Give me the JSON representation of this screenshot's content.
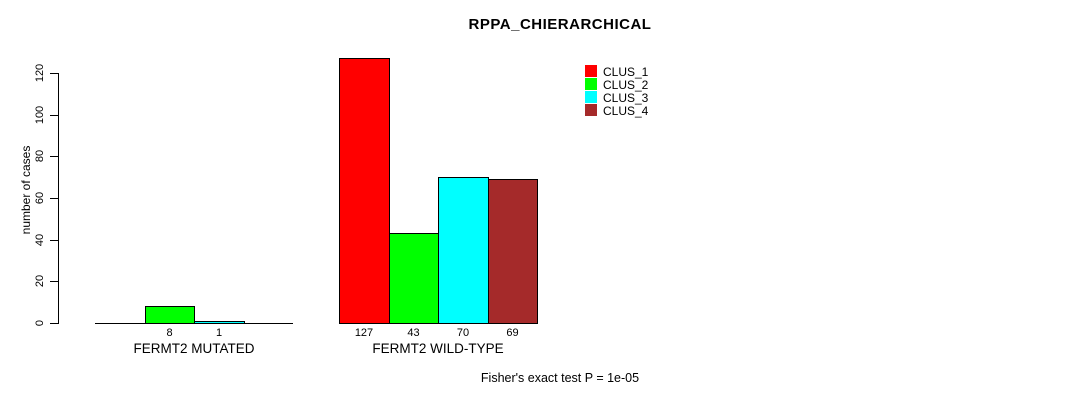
{
  "chart_data": {
    "type": "bar",
    "title": "RPPA_CHIERARCHICAL",
    "ylabel": "number of cases",
    "xlabel": "",
    "ylim": [
      0,
      120
    ],
    "yticks": [
      0,
      20,
      40,
      60,
      80,
      100,
      120
    ],
    "grid": false,
    "legend_position": "top-right",
    "legend": [
      {
        "label": "CLUS_1",
        "color": "#FF0000"
      },
      {
        "label": "CLUS_2",
        "color": "#00FF00"
      },
      {
        "label": "CLUS_3",
        "color": "#00FFFF"
      },
      {
        "label": "CLUS_4",
        "color": "#A52A2A"
      }
    ],
    "categories": [
      "FERMT2 MUTATED",
      "FERMT2 WILD-TYPE"
    ],
    "series": [
      {
        "name": "CLUS_1",
        "values": [
          0,
          127
        ]
      },
      {
        "name": "CLUS_2",
        "values": [
          8,
          43
        ]
      },
      {
        "name": "CLUS_3",
        "values": [
          1,
          70
        ]
      },
      {
        "name": "CLUS_4",
        "values": [
          0,
          69
        ]
      }
    ],
    "groups": [
      {
        "label": "FERMT2 MUTATED",
        "values": [
          0,
          8,
          1,
          0
        ],
        "bar_labels": [
          "",
          "8",
          "1",
          ""
        ]
      },
      {
        "label": "FERMT2 WILD-TYPE",
        "values": [
          127,
          43,
          70,
          69
        ],
        "bar_labels": [
          "127",
          "43",
          "70",
          "69"
        ]
      }
    ],
    "footnote": "Fisher's exact test P = 1e-05",
    "colors": {
      "background": "#FFFFFF",
      "axis": "#000000",
      "bar_border": "#000000",
      "text": "#000000"
    }
  }
}
